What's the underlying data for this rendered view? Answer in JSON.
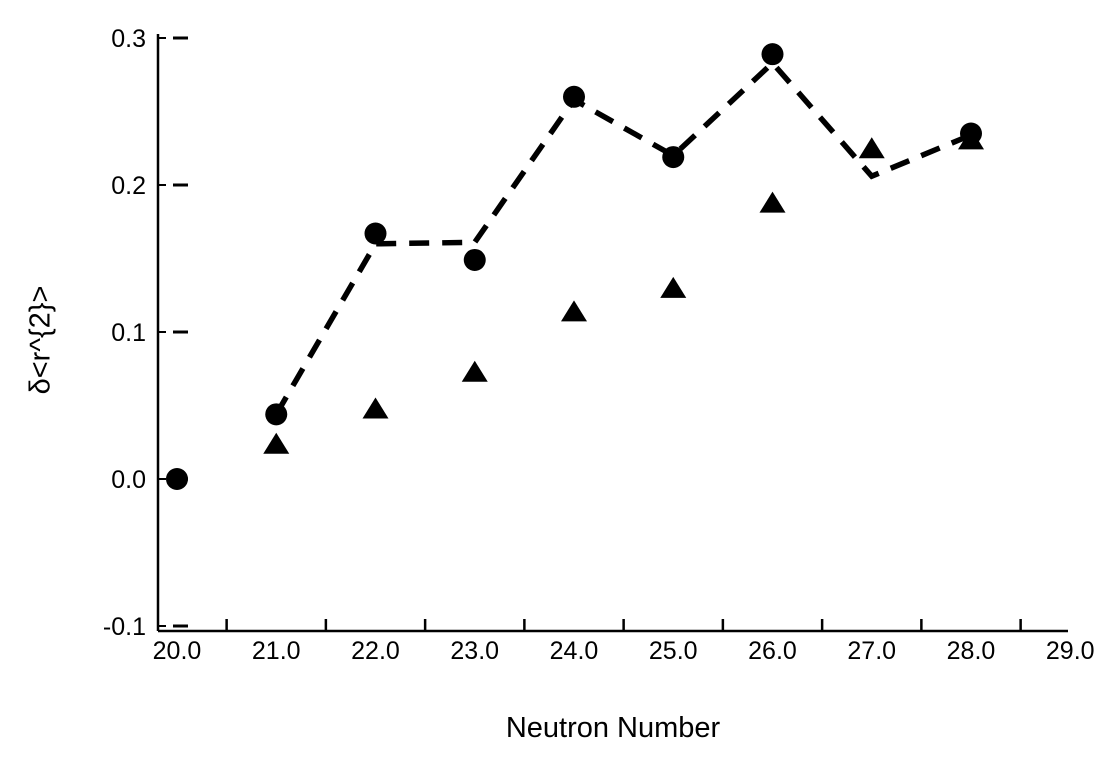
{
  "chart_data": {
    "type": "scatter",
    "title": "",
    "xlabel": "Neutron Number",
    "ylabel": "δ<r^{2}>",
    "xlim": [
      20,
      29
    ],
    "ylim": [
      -0.1,
      0.3
    ],
    "grid": false,
    "legend": "none",
    "x_tick_labels": [
      "20.0",
      "21.0",
      "22.0",
      "23.0",
      "24.0",
      "25.0",
      "26.0",
      "27.0",
      "28.0",
      "29.0"
    ],
    "x_tick_values": [
      20,
      21,
      22,
      23,
      24,
      25,
      26,
      27,
      28,
      29
    ],
    "x_minor_tick_values": [
      20.5,
      21.5,
      22.5,
      23.5,
      24.5,
      25.5,
      26.5,
      27.5,
      28.5
    ],
    "y_tick_labels": [
      "0.3",
      "0.2",
      "0.1",
      "0.0",
      "-0.1"
    ],
    "y_tick_values": [
      0.3,
      0.2,
      0.1,
      0.0,
      -0.1
    ],
    "series": [
      {
        "name": "dashed-line",
        "type": "line",
        "style": "dashed",
        "x": [
          21,
          22,
          23,
          24,
          25,
          26,
          27,
          28
        ],
        "y": [
          0.044,
          0.16,
          0.161,
          0.258,
          0.22,
          0.283,
          0.206,
          0.234
        ]
      },
      {
        "name": "filled-triangles",
        "type": "scatter",
        "marker": "triangle",
        "x": [
          21,
          22,
          23,
          24,
          25,
          26,
          27,
          28
        ],
        "y": [
          0.024,
          0.048,
          0.073,
          0.114,
          0.13,
          0.188,
          0.225,
          0.231
        ]
      },
      {
        "name": "filled-circles",
        "type": "scatter",
        "marker": "circle",
        "x": [
          20,
          21,
          22,
          23,
          24,
          25,
          26,
          28
        ],
        "y": [
          0.0,
          0.044,
          0.167,
          0.149,
          0.26,
          0.219,
          0.289,
          0.235
        ]
      }
    ],
    "colors": {
      "marker": "#000000",
      "line": "#000000",
      "axis": "#000000",
      "text": "#000000",
      "background": "#ffffff"
    }
  }
}
